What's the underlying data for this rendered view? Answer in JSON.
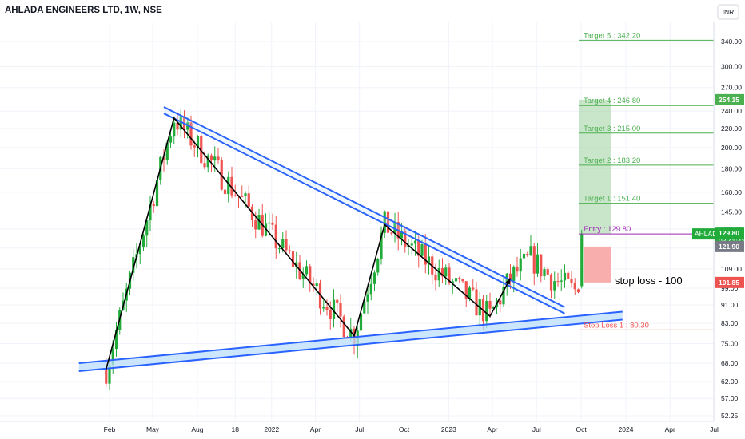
{
  "chart_title": "AHLADA ENGINEERS LTD, 1W, NSE",
  "currency": "INR",
  "colors": {
    "up": "#26a69a",
    "upBright": "#22ab3a",
    "down": "#ef5350",
    "target": "#4caf50",
    "entry": "#9c27b0",
    "stop": "#ef5350",
    "channel": "#2962ff",
    "channelFill": "#bbdefb",
    "profitZone": "#a5d6a7",
    "lossZone": "#f8a5a5",
    "grid": "#f0f3fa"
  },
  "chart_data": {
    "type": "candlestick",
    "symbol": "AHLADA",
    "exchange": "NSE",
    "interval": "1W",
    "y_scale": "log",
    "ylim": [
      52.25,
      380
    ],
    "y_ticks": [
      52.25,
      57.0,
      62.0,
      68.0,
      75.0,
      83.0,
      91.0,
      99.0,
      109.0,
      121.0,
      133.0,
      145.0,
      160.0,
      180.0,
      200.0,
      220.0,
      240.0,
      270.0,
      300.0,
      340.0
    ],
    "x_ticks": [
      {
        "label": "Feb",
        "date": "2021-02-01"
      },
      {
        "label": "May",
        "date": "2021-05-01"
      },
      {
        "label": "Aug",
        "date": "2021-08-01"
      },
      {
        "label": "18",
        "date": "2021-10-18"
      },
      {
        "label": "2022",
        "date": "2022-01-01"
      },
      {
        "label": "Apr",
        "date": "2022-04-01"
      },
      {
        "label": "Jul",
        "date": "2022-07-01"
      },
      {
        "label": "Oct",
        "date": "2022-10-01"
      },
      {
        "label": "2023",
        "date": "2023-01-01"
      },
      {
        "label": "Apr",
        "date": "2023-04-01"
      },
      {
        "label": "Jul",
        "date": "2023-07-01"
      },
      {
        "label": "Oct",
        "date": "2023-10-01"
      },
      {
        "label": "2024",
        "date": "2024-01-01"
      },
      {
        "label": "Apr",
        "date": "2024-04-01"
      },
      {
        "label": "Jul",
        "date": "2024-07-01"
      }
    ],
    "key_points": [
      {
        "date": "2021-01-25",
        "price": 66
      },
      {
        "date": "2021-06-14",
        "price": 232
      },
      {
        "date": "2022-06-20",
        "price": 78
      },
      {
        "date": "2022-08-22",
        "price": 136
      },
      {
        "date": "2023-03-27",
        "price": 86
      },
      {
        "date": "2023-05-08",
        "price": 104
      },
      {
        "date": "2023-06-19",
        "price": 115
      },
      {
        "date": "2023-08-07",
        "price": 103
      },
      {
        "date": "2023-09-25",
        "price": 97
      },
      {
        "date": "2023-10-02",
        "price": 129.8
      }
    ],
    "trendlines": [
      {
        "name": "descending-channel",
        "from": {
          "date": "2021-05-24",
          "price": 245
        },
        "to": {
          "date": "2023-08-28",
          "price": 90
        }
      },
      {
        "name": "ascending-support",
        "from": {
          "date": "2020-11-30",
          "price": 68
        },
        "to": {
          "date": "2023-12-25",
          "price": 88
        }
      }
    ],
    "levels": [
      {
        "label": "Target 5 : 342.20",
        "value": 342.2,
        "kind": "target"
      },
      {
        "label": "Target 4 : 246.80",
        "value": 246.8,
        "kind": "target"
      },
      {
        "label": "Target 3 : 215.00",
        "value": 215.0,
        "kind": "target"
      },
      {
        "label": "Target 2 : 183.20",
        "value": 183.2,
        "kind": "target"
      },
      {
        "label": "Target 1 : 151.40",
        "value": 151.4,
        "kind": "target"
      },
      {
        "label": "Entry : 129.80",
        "value": 129.8,
        "kind": "entry"
      },
      {
        "label": "Stop Loss 1 : 80.30",
        "value": 80.3,
        "kind": "stop"
      }
    ],
    "position": {
      "entry": 129.8,
      "target": 254.15,
      "stop": 101.85
    },
    "price_badges": [
      {
        "value": 254.15,
        "text": "254.15",
        "kind": "target-badge"
      },
      {
        "value": 129.8,
        "text": "129.80",
        "sub": "03:41:42",
        "ticker": "AHLADA",
        "kind": "current"
      },
      {
        "value": 121.9,
        "text": "121.90",
        "kind": "gray"
      },
      {
        "value": 101.85,
        "text": "101.85",
        "kind": "stop-badge"
      }
    ],
    "annotations": [
      {
        "text": "stop loss - 100"
      }
    ]
  }
}
